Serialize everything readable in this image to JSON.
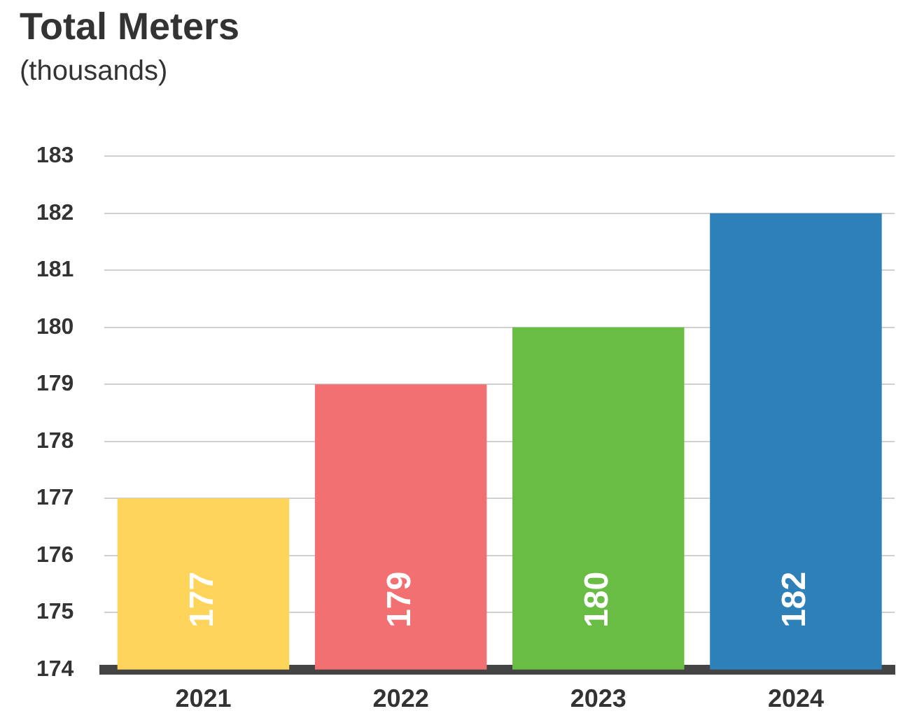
{
  "chart_data": {
    "type": "bar",
    "title": "Total Meters",
    "subtitle": "(thousands)",
    "categories": [
      "2021",
      "2022",
      "2023",
      "2024"
    ],
    "values": [
      177,
      179,
      180,
      182
    ],
    "colors": [
      "#fed45a",
      "#f27071",
      "#69bd45",
      "#2e80b9"
    ],
    "ylim": [
      174,
      183
    ],
    "yticks": [
      174,
      175,
      176,
      177,
      178,
      179,
      180,
      181,
      182,
      183
    ],
    "grid": "y",
    "data_labels": true
  }
}
